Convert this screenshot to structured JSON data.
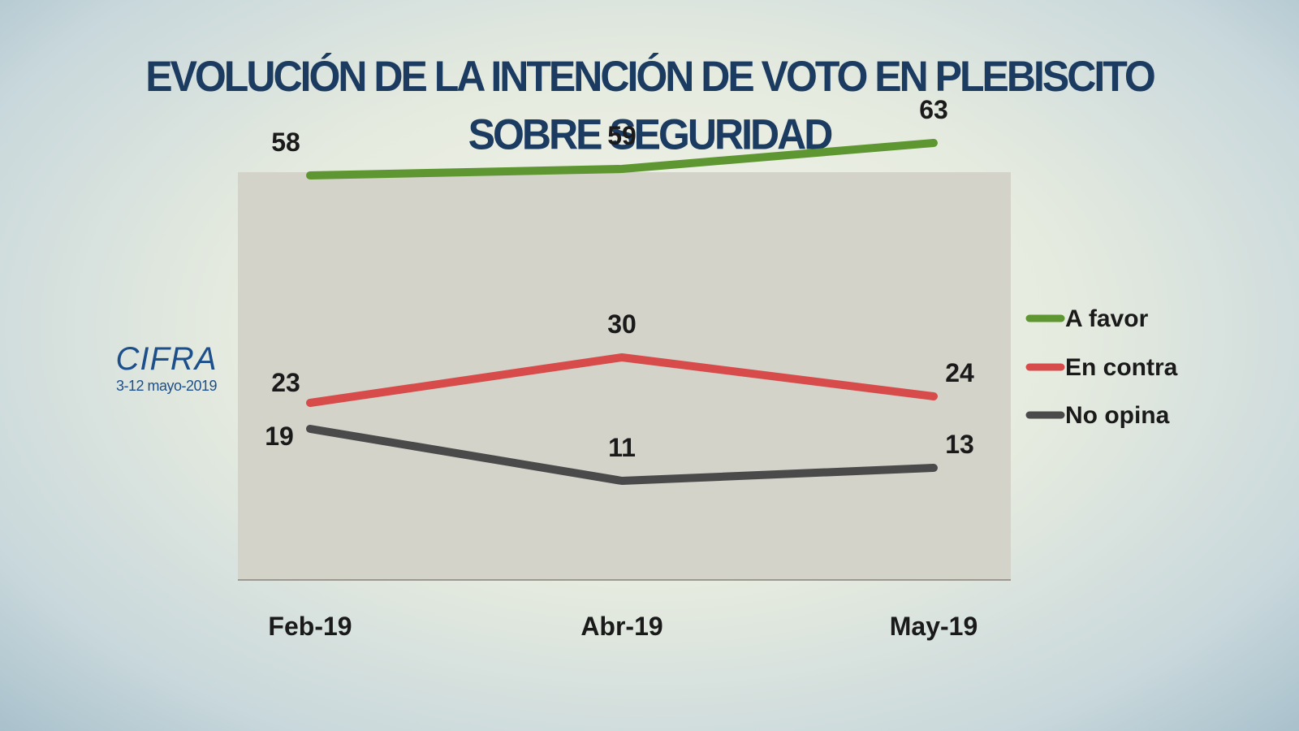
{
  "title": {
    "line1": "EVOLUCIÓN DE LA INTENCIÓN DE VOTO EN PLEBISCITO",
    "line2": "SOBRE SEGURIDAD"
  },
  "brand": {
    "logo_text": "CIFRA",
    "date": "3-12 mayo-2019"
  },
  "chart_data": {
    "type": "line",
    "title": "EVOLUCIÓN DE LA INTENCIÓN DE VOTO EN PLEBISCITO SOBRE SEGURIDAD",
    "categories": [
      "Feb-19",
      "Abr-19",
      "May-19"
    ],
    "series": [
      {
        "name": "A favor",
        "values": [
          58,
          59,
          63
        ],
        "color": "#5e9631"
      },
      {
        "name": "En contra",
        "values": [
          23,
          30,
          24
        ],
        "color": "#d84b4b"
      },
      {
        "name": "No opina",
        "values": [
          19,
          11,
          13
        ],
        "color": "#4a4a4a"
      }
    ],
    "ylim": [
      0,
      70
    ],
    "xlabel": "",
    "ylabel": "",
    "legend_position": "right",
    "plot_background": "#d3d3ca"
  }
}
